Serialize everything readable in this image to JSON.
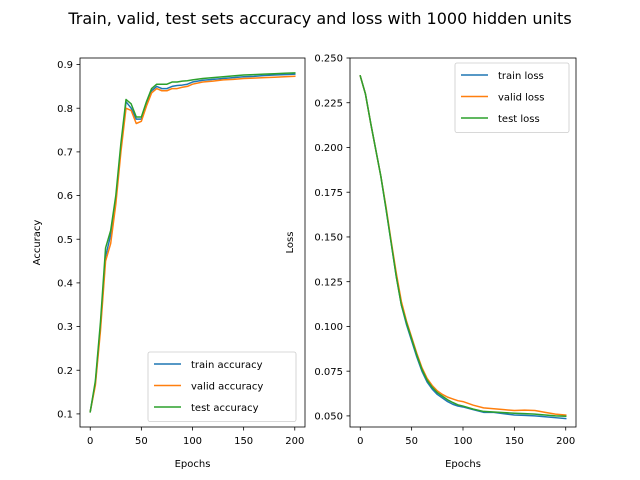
{
  "title": "Train, valid, test sets accuracy and loss with 1000 hidden units",
  "colors": {
    "train": "#1f77b4",
    "valid": "#ff7f0e",
    "test": "#2ca02c"
  },
  "chart_data": [
    {
      "type": "line",
      "xlabel": "Epochs",
      "ylabel": "Accuracy",
      "xlim": [
        -10,
        210
      ],
      "ylim": [
        0.07,
        0.915
      ],
      "xticks": [
        0,
        50,
        100,
        150,
        200
      ],
      "xtick_labels": [
        "0",
        "50",
        "100",
        "150",
        "200"
      ],
      "yticks": [
        0.1,
        0.2,
        0.3,
        0.4,
        0.5,
        0.6,
        0.7,
        0.8,
        0.9
      ],
      "ytick_labels": [
        "0.1",
        "0.2",
        "0.3",
        "0.4",
        "0.5",
        "0.6",
        "0.7",
        "0.8",
        "0.9"
      ],
      "legend_position": "lower-right",
      "grid": false,
      "x": [
        0,
        5,
        10,
        15,
        20,
        25,
        30,
        35,
        40,
        45,
        50,
        55,
        60,
        65,
        70,
        75,
        80,
        85,
        90,
        95,
        100,
        110,
        120,
        130,
        140,
        150,
        160,
        170,
        180,
        190,
        200
      ],
      "series": [
        {
          "name": "train accuracy",
          "color_key": "train",
          "values": [
            0.105,
            0.17,
            0.3,
            0.46,
            0.51,
            0.59,
            0.71,
            0.815,
            0.8,
            0.775,
            0.775,
            0.81,
            0.84,
            0.85,
            0.845,
            0.845,
            0.85,
            0.852,
            0.853,
            0.855,
            0.86,
            0.864,
            0.866,
            0.868,
            0.87,
            0.872,
            0.873,
            0.875,
            0.876,
            0.877,
            0.878
          ]
        },
        {
          "name": "valid accuracy",
          "color_key": "valid",
          "values": [
            0.105,
            0.165,
            0.29,
            0.45,
            0.49,
            0.58,
            0.7,
            0.8,
            0.795,
            0.765,
            0.77,
            0.805,
            0.835,
            0.845,
            0.84,
            0.84,
            0.845,
            0.845,
            0.848,
            0.85,
            0.855,
            0.86,
            0.862,
            0.865,
            0.866,
            0.868,
            0.869,
            0.87,
            0.871,
            0.872,
            0.873
          ]
        },
        {
          "name": "test accuracy",
          "color_key": "test",
          "values": [
            0.105,
            0.175,
            0.31,
            0.48,
            0.52,
            0.6,
            0.72,
            0.82,
            0.81,
            0.78,
            0.78,
            0.815,
            0.845,
            0.855,
            0.855,
            0.855,
            0.86,
            0.86,
            0.862,
            0.863,
            0.865,
            0.868,
            0.87,
            0.872,
            0.874,
            0.876,
            0.877,
            0.878,
            0.879,
            0.88,
            0.881
          ]
        }
      ]
    },
    {
      "type": "line",
      "xlabel": "Epochs",
      "ylabel": "Loss",
      "xlim": [
        -10,
        210
      ],
      "ylim": [
        0.0438,
        0.25
      ],
      "xticks": [
        0,
        50,
        100,
        150,
        200
      ],
      "xtick_labels": [
        "0",
        "50",
        "100",
        "150",
        "200"
      ],
      "yticks": [
        0.05,
        0.075,
        0.1,
        0.125,
        0.15,
        0.175,
        0.2,
        0.225,
        0.25
      ],
      "ytick_labels": [
        "0.050",
        "0.075",
        "0.100",
        "0.125",
        "0.150",
        "0.175",
        "0.200",
        "0.225",
        "0.250"
      ],
      "legend_position": "top-right",
      "grid": false,
      "x": [
        0,
        5,
        10,
        15,
        20,
        25,
        30,
        35,
        40,
        45,
        50,
        55,
        60,
        65,
        70,
        75,
        80,
        85,
        90,
        95,
        100,
        110,
        120,
        130,
        140,
        150,
        160,
        170,
        180,
        190,
        200
      ],
      "series": [
        {
          "name": "train loss",
          "color_key": "train",
          "values": [
            0.24,
            0.23,
            0.214,
            0.199,
            0.184,
            0.166,
            0.147,
            0.128,
            0.112,
            0.101,
            0.092,
            0.083,
            0.075,
            0.069,
            0.065,
            0.062,
            0.06,
            0.058,
            0.0565,
            0.0555,
            0.055,
            0.0535,
            0.052,
            0.052,
            0.0512,
            0.0505,
            0.0503,
            0.05,
            0.0495,
            0.049,
            0.0485
          ]
        },
        {
          "name": "valid loss",
          "color_key": "valid",
          "values": [
            0.24,
            0.23,
            0.214,
            0.199,
            0.184,
            0.167,
            0.148,
            0.13,
            0.114,
            0.103,
            0.094,
            0.085,
            0.077,
            0.071,
            0.067,
            0.064,
            0.062,
            0.0605,
            0.0595,
            0.0585,
            0.058,
            0.056,
            0.0545,
            0.054,
            0.0535,
            0.053,
            0.0532,
            0.053,
            0.052,
            0.051,
            0.0505
          ]
        },
        {
          "name": "test loss",
          "color_key": "test",
          "values": [
            0.24,
            0.23,
            0.214,
            0.199,
            0.184,
            0.166,
            0.147,
            0.128,
            0.112,
            0.102,
            0.093,
            0.084,
            0.076,
            0.07,
            0.066,
            0.063,
            0.061,
            0.059,
            0.0575,
            0.0562,
            0.0555,
            0.0538,
            0.0525,
            0.0522,
            0.0518,
            0.0515,
            0.0513,
            0.051,
            0.0505,
            0.05,
            0.0498
          ]
        }
      ]
    }
  ]
}
